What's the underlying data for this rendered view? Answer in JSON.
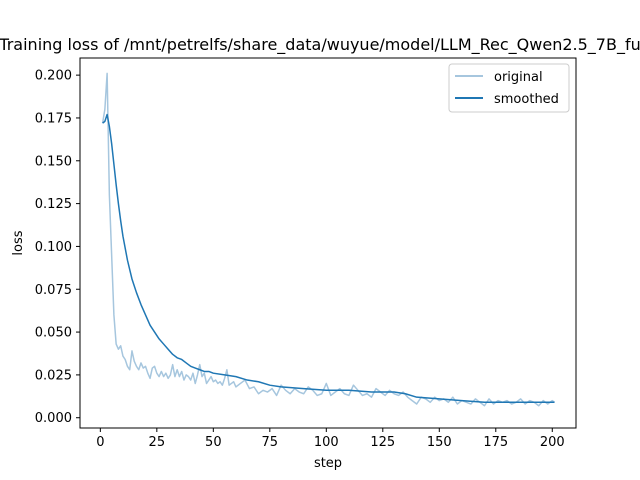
{
  "chart_data": {
    "type": "line",
    "title": "Training loss of /mnt/petrelfs/share_data/wuyue/model/LLM_Rec_Qwen2.5_7B_fu",
    "xlabel": "step",
    "ylabel": "loss",
    "xlim": [
      -9,
      210.5
    ],
    "ylim": [
      -0.006,
      0.21
    ],
    "xticks": [
      "0",
      "25",
      "50",
      "75",
      "100",
      "125",
      "150",
      "175",
      "200"
    ],
    "yticks": [
      "0.000",
      "0.025",
      "0.050",
      "0.075",
      "0.100",
      "0.125",
      "0.150",
      "0.175",
      "0.200"
    ],
    "grid": false,
    "legend_position": "upper right",
    "series": [
      {
        "name": "original",
        "color": "#a6c6de",
        "points": [
          [
            1,
            0.172
          ],
          [
            2,
            0.18
          ],
          [
            3,
            0.201
          ],
          [
            4,
            0.13
          ],
          [
            5,
            0.095
          ],
          [
            6,
            0.06
          ],
          [
            7,
            0.043
          ],
          [
            8,
            0.04
          ],
          [
            9,
            0.042
          ],
          [
            10,
            0.036
          ],
          [
            11,
            0.034
          ],
          [
            12,
            0.03
          ],
          [
            13,
            0.028
          ],
          [
            14,
            0.039
          ],
          [
            15,
            0.033
          ],
          [
            16,
            0.03
          ],
          [
            17,
            0.028
          ],
          [
            18,
            0.032
          ],
          [
            19,
            0.029
          ],
          [
            20,
            0.03
          ],
          [
            21,
            0.026
          ],
          [
            22,
            0.023
          ],
          [
            23,
            0.029
          ],
          [
            24,
            0.03
          ],
          [
            25,
            0.026
          ],
          [
            26,
            0.024
          ],
          [
            27,
            0.027
          ],
          [
            28,
            0.024
          ],
          [
            29,
            0.026
          ],
          [
            30,
            0.023
          ],
          [
            31,
            0.025
          ],
          [
            32,
            0.031
          ],
          [
            33,
            0.024
          ],
          [
            34,
            0.028
          ],
          [
            35,
            0.024
          ],
          [
            36,
            0.027
          ],
          [
            37,
            0.022
          ],
          [
            38,
            0.025
          ],
          [
            39,
            0.024
          ],
          [
            40,
            0.022
          ],
          [
            41,
            0.026
          ],
          [
            42,
            0.02
          ],
          [
            43,
            0.025
          ],
          [
            44,
            0.031
          ],
          [
            45,
            0.024
          ],
          [
            46,
            0.026
          ],
          [
            47,
            0.02
          ],
          [
            48,
            0.022
          ],
          [
            49,
            0.024
          ],
          [
            50,
            0.021
          ],
          [
            51,
            0.022
          ],
          [
            52,
            0.02
          ],
          [
            53,
            0.021
          ],
          [
            54,
            0.019
          ],
          [
            55,
            0.023
          ],
          [
            56,
            0.028
          ],
          [
            57,
            0.019
          ],
          [
            58,
            0.02
          ],
          [
            59,
            0.021
          ],
          [
            60,
            0.018
          ],
          [
            62,
            0.02
          ],
          [
            64,
            0.022
          ],
          [
            66,
            0.017
          ],
          [
            68,
            0.018
          ],
          [
            70,
            0.014
          ],
          [
            72,
            0.016
          ],
          [
            74,
            0.015
          ],
          [
            76,
            0.017
          ],
          [
            78,
            0.013
          ],
          [
            80,
            0.019
          ],
          [
            82,
            0.016
          ],
          [
            84,
            0.014
          ],
          [
            86,
            0.017
          ],
          [
            88,
            0.015
          ],
          [
            90,
            0.014
          ],
          [
            92,
            0.018
          ],
          [
            94,
            0.016
          ],
          [
            96,
            0.013
          ],
          [
            98,
            0.014
          ],
          [
            100,
            0.02
          ],
          [
            102,
            0.013
          ],
          [
            104,
            0.015
          ],
          [
            106,
            0.017
          ],
          [
            108,
            0.014
          ],
          [
            110,
            0.013
          ],
          [
            112,
            0.019
          ],
          [
            114,
            0.016
          ],
          [
            116,
            0.013
          ],
          [
            118,
            0.014
          ],
          [
            120,
            0.012
          ],
          [
            122,
            0.017
          ],
          [
            124,
            0.015
          ],
          [
            126,
            0.013
          ],
          [
            128,
            0.016
          ],
          [
            130,
            0.014
          ],
          [
            132,
            0.013
          ],
          [
            134,
            0.015
          ],
          [
            136,
            0.012
          ],
          [
            138,
            0.01
          ],
          [
            140,
            0.008
          ],
          [
            142,
            0.012
          ],
          [
            144,
            0.011
          ],
          [
            146,
            0.009
          ],
          [
            148,
            0.012
          ],
          [
            150,
            0.01
          ],
          [
            152,
            0.011
          ],
          [
            154,
            0.009
          ],
          [
            156,
            0.012
          ],
          [
            158,
            0.008
          ],
          [
            160,
            0.01
          ],
          [
            162,
            0.009
          ],
          [
            164,
            0.008
          ],
          [
            166,
            0.011
          ],
          [
            168,
            0.009
          ],
          [
            170,
            0.007
          ],
          [
            172,
            0.011
          ],
          [
            174,
            0.008
          ],
          [
            176,
            0.01
          ],
          [
            178,
            0.009
          ],
          [
            180,
            0.01
          ],
          [
            182,
            0.008
          ],
          [
            184,
            0.009
          ],
          [
            186,
            0.011
          ],
          [
            188,
            0.008
          ],
          [
            190,
            0.01
          ],
          [
            192,
            0.009
          ],
          [
            194,
            0.007
          ],
          [
            196,
            0.01
          ],
          [
            198,
            0.008
          ],
          [
            200,
            0.01
          ],
          [
            201,
            0.009
          ]
        ]
      },
      {
        "name": "smoothed",
        "color": "#1f77b4",
        "points": [
          [
            1,
            0.172
          ],
          [
            2,
            0.173
          ],
          [
            3,
            0.177
          ],
          [
            4,
            0.17
          ],
          [
            5,
            0.16
          ],
          [
            6,
            0.148
          ],
          [
            7,
            0.136
          ],
          [
            8,
            0.125
          ],
          [
            9,
            0.115
          ],
          [
            10,
            0.106
          ],
          [
            12,
            0.092
          ],
          [
            14,
            0.081
          ],
          [
            16,
            0.073
          ],
          [
            18,
            0.066
          ],
          [
            20,
            0.06
          ],
          [
            22,
            0.054
          ],
          [
            24,
            0.05
          ],
          [
            26,
            0.046
          ],
          [
            28,
            0.043
          ],
          [
            30,
            0.04
          ],
          [
            32,
            0.037
          ],
          [
            34,
            0.035
          ],
          [
            36,
            0.034
          ],
          [
            38,
            0.032
          ],
          [
            40,
            0.03
          ],
          [
            42,
            0.029
          ],
          [
            44,
            0.028
          ],
          [
            46,
            0.027
          ],
          [
            48,
            0.027
          ],
          [
            50,
            0.026
          ],
          [
            55,
            0.025
          ],
          [
            60,
            0.024
          ],
          [
            65,
            0.022
          ],
          [
            70,
            0.021
          ],
          [
            75,
            0.019
          ],
          [
            80,
            0.018
          ],
          [
            90,
            0.017
          ],
          [
            100,
            0.016
          ],
          [
            110,
            0.016
          ],
          [
            120,
            0.015
          ],
          [
            130,
            0.015
          ],
          [
            135,
            0.014
          ],
          [
            140,
            0.012
          ],
          [
            150,
            0.011
          ],
          [
            160,
            0.01
          ],
          [
            170,
            0.009
          ],
          [
            180,
            0.009
          ],
          [
            190,
            0.009
          ],
          [
            201,
            0.009
          ]
        ]
      }
    ]
  }
}
